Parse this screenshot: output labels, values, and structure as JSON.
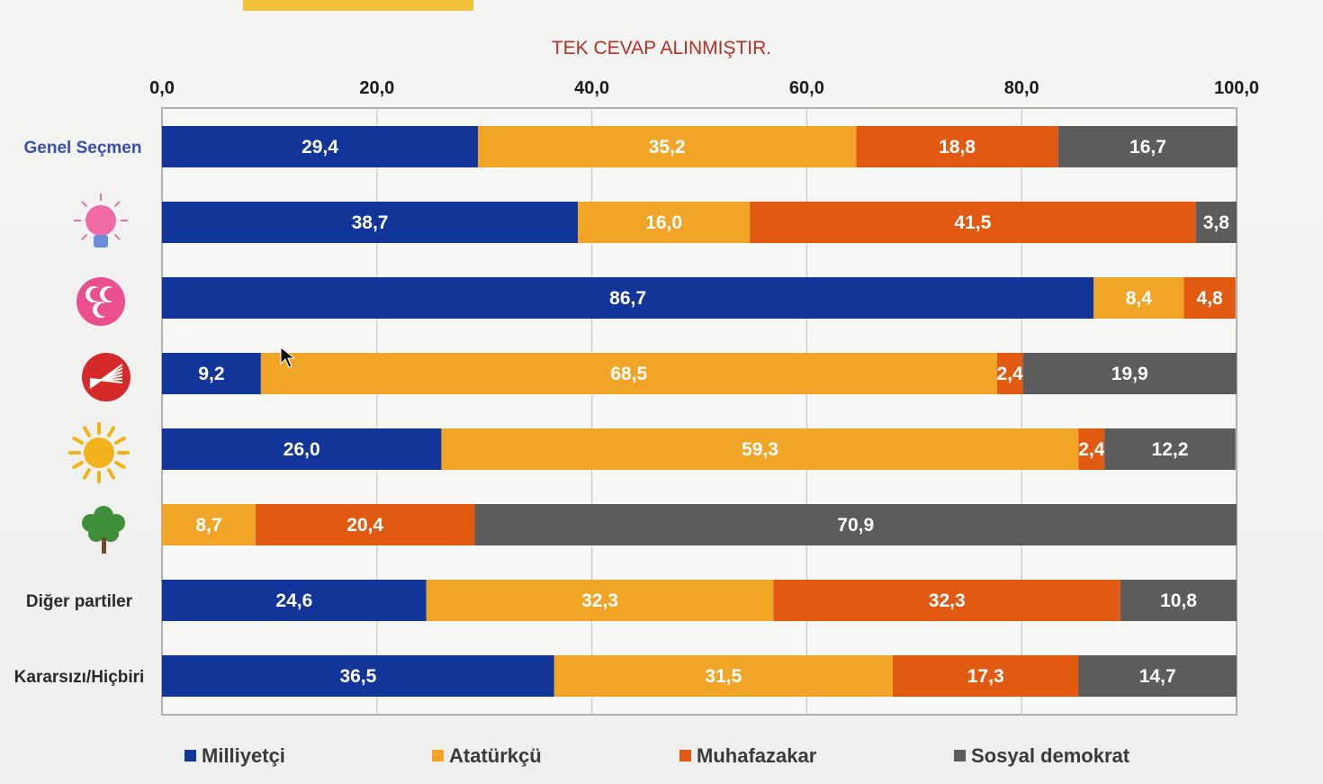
{
  "chart_data": {
    "type": "bar",
    "orientation": "horizontal",
    "stacked": true,
    "title": "",
    "subtitle": "TEK CEVAP ALINMIŞTIR.",
    "xlim": [
      0,
      100
    ],
    "x_ticks": [
      "0,0",
      "20,0",
      "40,0",
      "60,0",
      "80,0",
      "100,0"
    ],
    "grid": true,
    "legend_position": "bottom",
    "categories": [
      {
        "label": "Genel Seçmen",
        "icon": ""
      },
      {
        "label": "",
        "icon": "light-bulb-icon"
      },
      {
        "label": "",
        "icon": "three-crescents-icon"
      },
      {
        "label": "",
        "icon": "six-arrows-icon"
      },
      {
        "label": "",
        "icon": "sun-icon"
      },
      {
        "label": "",
        "icon": "tree-icon"
      },
      {
        "label": "Diğer partiler",
        "icon": ""
      },
      {
        "label": "Kararsızı/Hiçbiri",
        "icon": ""
      }
    ],
    "series": [
      {
        "name": "Milliyetçi",
        "color": "#12359a",
        "values": [
          29.4,
          38.7,
          86.7,
          9.2,
          26.0,
          0,
          24.6,
          36.5
        ],
        "labels": [
          "29,4",
          "38,7",
          "86,7",
          "9,2",
          "26,0",
          "",
          "24,6",
          "36,5"
        ]
      },
      {
        "name": "Atatürkçü",
        "color": "#f0a526",
        "values": [
          35.2,
          16.0,
          8.4,
          68.5,
          59.3,
          8.7,
          32.3,
          31.5
        ],
        "labels": [
          "35,2",
          "16,0",
          "8,4",
          "68,5",
          "59,3",
          "8,7",
          "32,3",
          "31,5"
        ]
      },
      {
        "name": "Muhafazakar",
        "color": "#e25a12",
        "values": [
          18.8,
          41.5,
          4.8,
          2.4,
          2.4,
          20.4,
          32.3,
          17.3
        ],
        "labels": [
          "18,8",
          "41,5",
          "4,8",
          "2,4",
          "2,4",
          "20,4",
          "32,3",
          "17,3"
        ]
      },
      {
        "name": "Sosyal demokrat",
        "color": "#5c5c5c",
        "values": [
          16.7,
          3.8,
          0,
          19.9,
          12.2,
          70.9,
          10.8,
          14.7
        ],
        "labels": [
          "16,7",
          "3,8",
          "",
          "19,9",
          "12,2",
          "70,9",
          "10,8",
          "14,7"
        ]
      }
    ]
  }
}
